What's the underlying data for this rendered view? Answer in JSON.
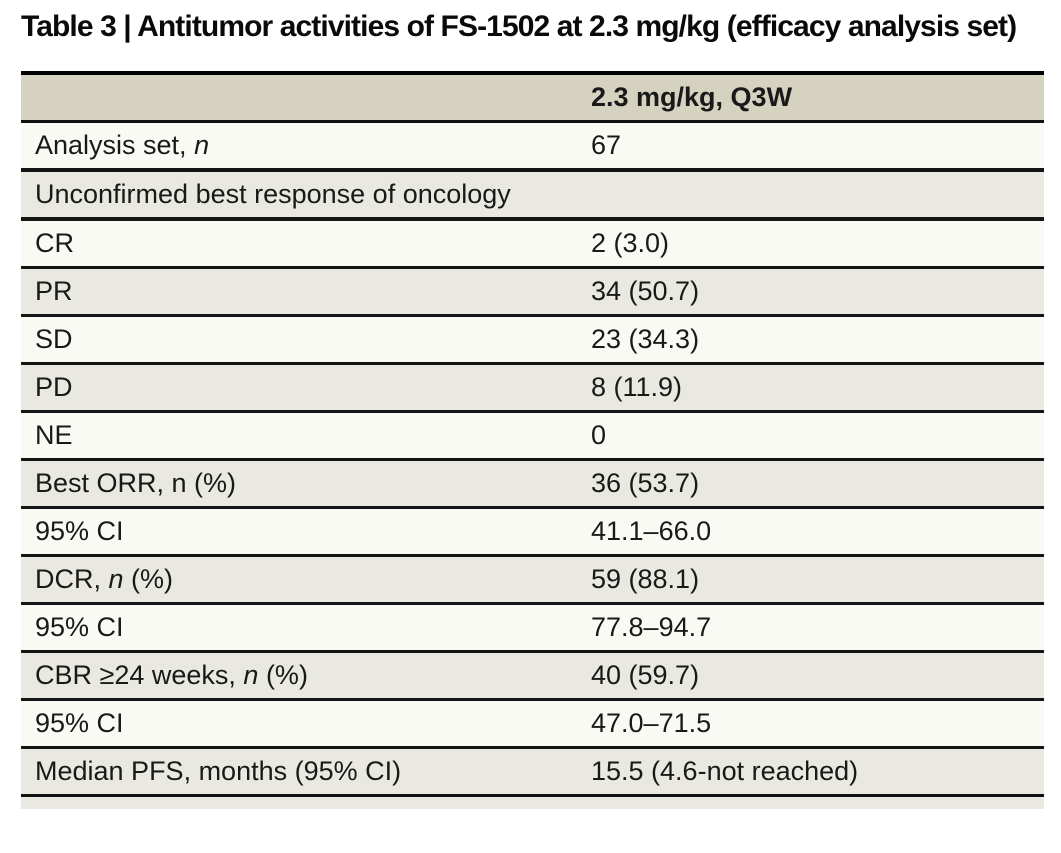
{
  "page": {
    "title": "Table 3 | Antitumor activities of FS-1502 at 2.3 mg/kg (efficacy analysis set)"
  },
  "colors": {
    "header_bg": "#d5d3c0",
    "row_beige": "#eae9e1",
    "row_white": "#fafaf5",
    "rule": "#141414",
    "text": "#191919"
  },
  "table": {
    "header": {
      "col1": "",
      "col2": "2.3 mg/kg, Q3W"
    },
    "rows": [
      {
        "label_prefix": "Analysis set, ",
        "label_italic": "n",
        "label_suffix": "",
        "value": "67"
      },
      {
        "section": "Unconfirmed best response of oncology"
      },
      {
        "label_prefix": "CR",
        "label_italic": "",
        "label_suffix": "",
        "value": "2 (3.0)"
      },
      {
        "label_prefix": "PR",
        "label_italic": "",
        "label_suffix": "",
        "value": "34 (50.7)"
      },
      {
        "label_prefix": "SD",
        "label_italic": "",
        "label_suffix": "",
        "value": "23 (34.3)"
      },
      {
        "label_prefix": "PD",
        "label_italic": "",
        "label_suffix": "",
        "value": "8 (11.9)"
      },
      {
        "label_prefix": "NE",
        "label_italic": "",
        "label_suffix": "",
        "value": "0"
      },
      {
        "label_prefix": "Best ORR, n (%)",
        "label_italic": "",
        "label_suffix": "",
        "value": "36 (53.7)"
      },
      {
        "label_prefix": "95% CI",
        "label_italic": "",
        "label_suffix": "",
        "value": "41.1–66.0"
      },
      {
        "label_prefix": "DCR, ",
        "label_italic": "n",
        "label_suffix": " (%)",
        "value": "59 (88.1)"
      },
      {
        "label_prefix": "95% CI",
        "label_italic": "",
        "label_suffix": "",
        "value": "77.8–94.7"
      },
      {
        "label_prefix": "CBR ≥24 weeks, ",
        "label_italic": "n",
        "label_suffix": " (%)",
        "value": "40 (59.7)"
      },
      {
        "label_prefix": "95% CI",
        "label_italic": "",
        "label_suffix": "",
        "value": "47.0–71.5"
      },
      {
        "label_prefix": "Median PFS, months (95% CI)",
        "label_italic": "",
        "label_suffix": "",
        "value": "15.5 (4.6-not reached)"
      }
    ]
  }
}
